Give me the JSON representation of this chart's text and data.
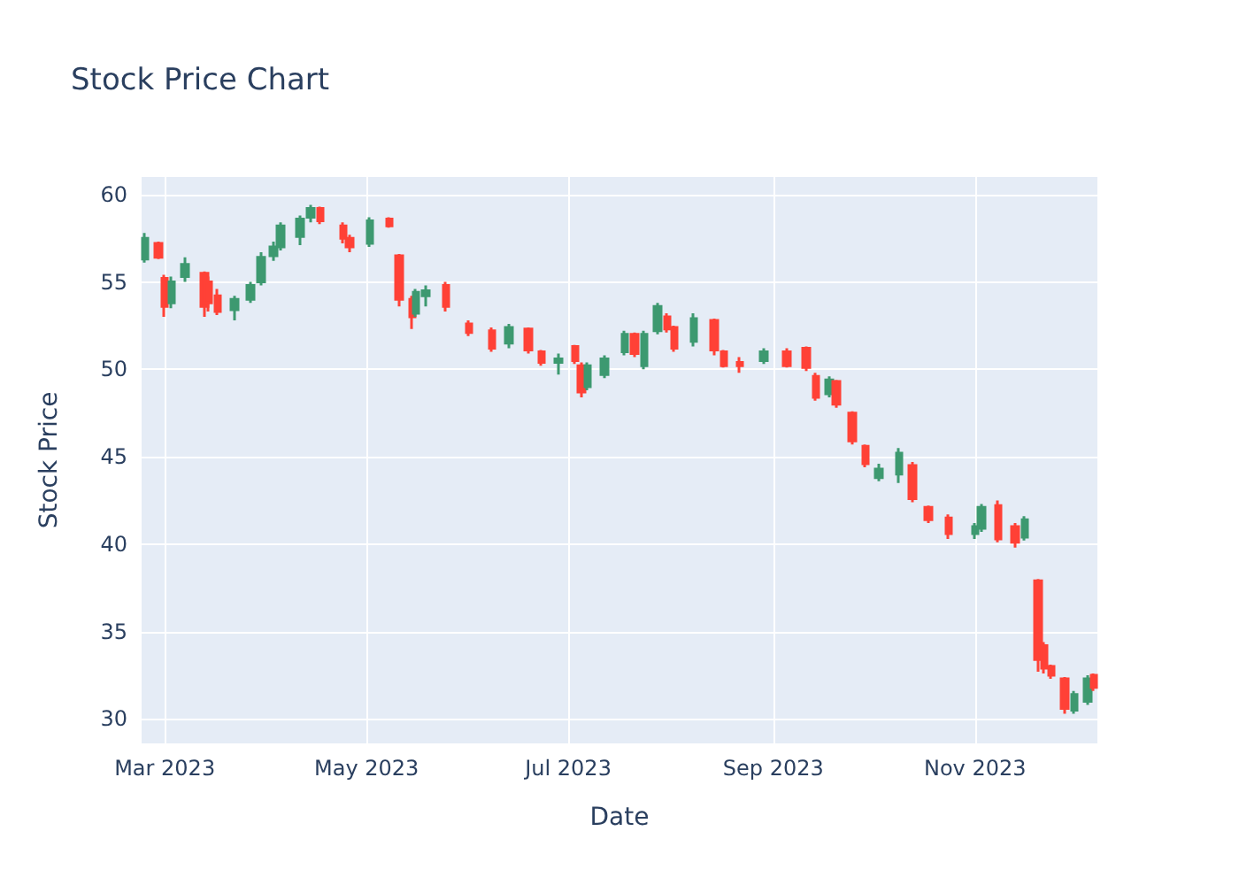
{
  "chart_data": {
    "type": "candlestick",
    "title": "Stock Price Chart",
    "xlabel": "Date",
    "ylabel": "Stock Price",
    "x": [
      "2023-02-23",
      "2023-02-27",
      "2023-03-01",
      "2023-03-03",
      "2023-03-07",
      "2023-03-13",
      "2023-03-14",
      "2023-03-17",
      "2023-03-22",
      "2023-03-27",
      "2023-03-30",
      "2023-04-03",
      "2023-04-05",
      "2023-04-11",
      "2023-04-14",
      "2023-04-17",
      "2023-04-24",
      "2023-04-26",
      "2023-05-02",
      "2023-05-08",
      "2023-05-11",
      "2023-05-15",
      "2023-05-16",
      "2023-05-19",
      "2023-05-25",
      "2023-06-01",
      "2023-06-08",
      "2023-06-13",
      "2023-06-19",
      "2023-06-23",
      "2023-06-28",
      "2023-07-03",
      "2023-07-05",
      "2023-07-07",
      "2023-07-12",
      "2023-07-18",
      "2023-07-21",
      "2023-07-24",
      "2023-07-28",
      "2023-07-31",
      "2023-08-02",
      "2023-08-08",
      "2023-08-14",
      "2023-08-17",
      "2023-08-22",
      "2023-08-29",
      "2023-09-05",
      "2023-09-11",
      "2023-09-14",
      "2023-09-18",
      "2023-09-20",
      "2023-09-25",
      "2023-09-29",
      "2023-10-03",
      "2023-10-09",
      "2023-10-13",
      "2023-10-18",
      "2023-10-24",
      "2023-11-01",
      "2023-11-03",
      "2023-11-08",
      "2023-11-13",
      "2023-11-16",
      "2023-11-20",
      "2023-11-22",
      "2023-11-24",
      "2023-11-28",
      "2023-12-01",
      "2023-12-05",
      "2023-12-07"
    ],
    "ohlc": [
      [
        56.3,
        57.8,
        56.1,
        57.5
      ],
      [
        57.2,
        57.3,
        56.3,
        56.4
      ],
      [
        55.2,
        55.4,
        53.0,
        53.6
      ],
      [
        53.8,
        55.3,
        53.5,
        55.0
      ],
      [
        55.3,
        56.4,
        55.0,
        56.0
      ],
      [
        55.5,
        55.6,
        53.0,
        53.6
      ],
      [
        55.0,
        55.3,
        53.3,
        53.8
      ],
      [
        54.2,
        54.6,
        53.1,
        53.3
      ],
      [
        53.4,
        54.2,
        52.8,
        54.0
      ],
      [
        54.0,
        55.0,
        53.8,
        54.8
      ],
      [
        55.0,
        56.7,
        54.8,
        56.4
      ],
      [
        56.5,
        57.3,
        56.2,
        57.0
      ],
      [
        57.0,
        58.4,
        56.8,
        58.2
      ],
      [
        57.6,
        58.8,
        57.1,
        58.6
      ],
      [
        58.7,
        59.4,
        58.4,
        59.2
      ],
      [
        59.2,
        59.3,
        58.3,
        58.5
      ],
      [
        58.2,
        58.4,
        57.2,
        57.5
      ],
      [
        57.5,
        57.7,
        56.7,
        57.0
      ],
      [
        57.2,
        58.7,
        57.0,
        58.5
      ],
      [
        58.6,
        58.7,
        58.1,
        58.2
      ],
      [
        56.5,
        56.6,
        53.6,
        54.0
      ],
      [
        54.0,
        54.2,
        52.3,
        53.0
      ],
      [
        53.2,
        54.6,
        53.0,
        54.4
      ],
      [
        54.2,
        54.8,
        53.6,
        54.5
      ],
      [
        54.8,
        55.0,
        53.3,
        53.6
      ],
      [
        52.6,
        52.8,
        51.9,
        52.1
      ],
      [
        52.2,
        52.4,
        51.0,
        51.2
      ],
      [
        51.5,
        52.6,
        51.2,
        52.4
      ],
      [
        52.3,
        52.4,
        50.9,
        51.1
      ],
      [
        51.0,
        51.1,
        50.2,
        50.4
      ],
      [
        50.4,
        50.9,
        49.7,
        50.6
      ],
      [
        51.3,
        51.4,
        50.3,
        50.5
      ],
      [
        50.2,
        50.4,
        48.4,
        48.7
      ],
      [
        49.0,
        50.4,
        48.8,
        50.2
      ],
      [
        49.7,
        50.8,
        49.5,
        50.6
      ],
      [
        51.0,
        52.2,
        50.8,
        52.0
      ],
      [
        52.0,
        52.1,
        50.7,
        50.9
      ],
      [
        50.2,
        52.2,
        50.0,
        52.0
      ],
      [
        52.2,
        53.8,
        52.0,
        53.6
      ],
      [
        53.0,
        53.2,
        52.1,
        52.3
      ],
      [
        52.4,
        52.5,
        51.0,
        51.2
      ],
      [
        51.6,
        53.2,
        51.3,
        52.9
      ],
      [
        52.8,
        52.9,
        50.8,
        51.1
      ],
      [
        51.0,
        51.1,
        50.1,
        50.2
      ],
      [
        50.4,
        50.7,
        49.8,
        50.2
      ],
      [
        50.5,
        51.2,
        50.3,
        51.0
      ],
      [
        51.0,
        51.2,
        50.1,
        50.2
      ],
      [
        51.2,
        51.3,
        49.9,
        50.1
      ],
      [
        49.6,
        49.8,
        48.2,
        48.4
      ],
      [
        48.6,
        49.6,
        48.4,
        49.4
      ],
      [
        49.3,
        49.4,
        47.8,
        48.0
      ],
      [
        47.5,
        47.6,
        45.7,
        45.9
      ],
      [
        45.6,
        45.7,
        44.4,
        44.6
      ],
      [
        43.8,
        44.6,
        43.6,
        44.3
      ],
      [
        44.0,
        45.5,
        43.5,
        45.2
      ],
      [
        44.5,
        44.7,
        42.4,
        42.6
      ],
      [
        42.1,
        42.2,
        41.2,
        41.4
      ],
      [
        41.5,
        41.7,
        40.3,
        40.6
      ],
      [
        40.6,
        41.2,
        40.3,
        41.0
      ],
      [
        40.9,
        42.3,
        40.7,
        42.1
      ],
      [
        42.2,
        42.5,
        40.1,
        40.3
      ],
      [
        41.0,
        41.2,
        39.8,
        40.1
      ],
      [
        40.4,
        41.6,
        40.2,
        41.4
      ],
      [
        37.9,
        38.0,
        32.7,
        33.4
      ],
      [
        34.2,
        34.4,
        32.6,
        32.9
      ],
      [
        33.0,
        33.1,
        32.3,
        32.5
      ],
      [
        32.3,
        32.4,
        30.3,
        30.6
      ],
      [
        30.5,
        31.6,
        30.3,
        31.4
      ],
      [
        31.0,
        32.5,
        30.8,
        32.3
      ],
      [
        32.5,
        32.6,
        31.6,
        31.8
      ]
    ],
    "colors": [
      "#3d9970",
      "#ff4136",
      "#ff4136",
      "#3d9970",
      "#3d9970",
      "#ff4136",
      "#ff4136",
      "#ff4136",
      "#3d9970",
      "#3d9970",
      "#3d9970",
      "#3d9970",
      "#3d9970",
      "#3d9970",
      "#3d9970",
      "#ff4136",
      "#ff4136",
      "#ff4136",
      "#3d9970",
      "#ff4136",
      "#ff4136",
      "#ff4136",
      "#3d9970",
      "#3d9970",
      "#ff4136",
      "#ff4136",
      "#ff4136",
      "#3d9970",
      "#ff4136",
      "#ff4136",
      "#3d9970",
      "#ff4136",
      "#ff4136",
      "#3d9970",
      "#3d9970",
      "#3d9970",
      "#ff4136",
      "#3d9970",
      "#3d9970",
      "#ff4136",
      "#ff4136",
      "#3d9970",
      "#ff4136",
      "#ff4136",
      "#ff4136",
      "#3d9970",
      "#ff4136",
      "#ff4136",
      "#ff4136",
      "#3d9970",
      "#ff4136",
      "#ff4136",
      "#ff4136",
      "#3d9970",
      "#3d9970",
      "#ff4136",
      "#ff4136",
      "#ff4136",
      "#3d9970",
      "#3d9970",
      "#ff4136",
      "#ff4136",
      "#3d9970",
      "#ff4136",
      "#ff4136",
      "#ff4136",
      "#ff4136",
      "#3d9970",
      "#3d9970",
      "#ff4136"
    ],
    "xlim": [
      "2023-02-22",
      "2023-12-08"
    ],
    "xticks": [
      {
        "value": "2023-03-01",
        "label": "Mar 2023"
      },
      {
        "value": "2023-05-01",
        "label": "May 2023"
      },
      {
        "value": "2023-07-01",
        "label": "Jul 2023"
      },
      {
        "value": "2023-09-01",
        "label": "Sep 2023"
      },
      {
        "value": "2023-11-01",
        "label": "Nov 2023"
      }
    ],
    "ylim": [
      28.6,
      61
    ],
    "yticks": [
      30,
      35,
      40,
      45,
      50,
      55,
      60
    ],
    "grid": true
  }
}
